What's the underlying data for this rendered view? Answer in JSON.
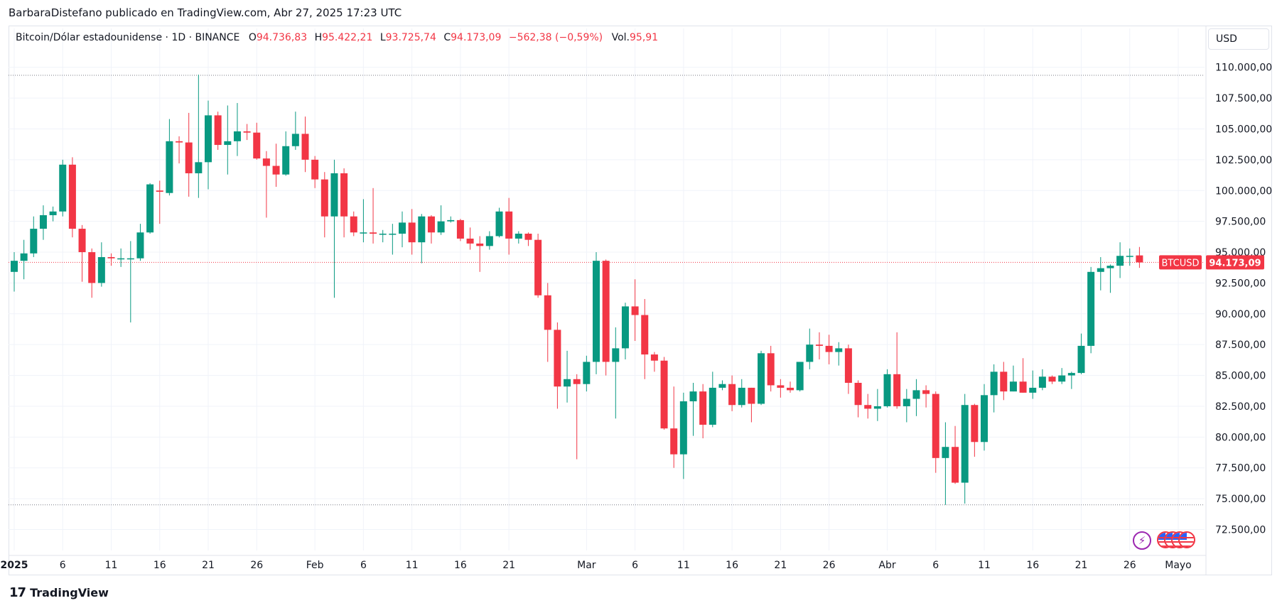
{
  "credit": "BarbaraDistefano publicado en TradingView.com, Abr 27, 2025 17:23 UTC",
  "legend": {
    "symbol": "Bitcoin/Dólar estadounidense · 1D · BINANCE",
    "o_label": "O",
    "o_value": "94.736,83",
    "h_label": "H",
    "h_value": "95.422,21",
    "l_label": "L",
    "l_value": "93.725,74",
    "c_label": "C",
    "c_value": "94.173,09",
    "change": "−562,38 (−0,59%)",
    "vol_label": "Vol.",
    "vol_value": "95,91"
  },
  "currency": "USD",
  "price_tag": {
    "symbol": "BTCUSD",
    "value": "94.173,09"
  },
  "brand": "TradingView",
  "icons": [
    "lightning-icon",
    "us-flag-icon",
    "us-flag-icon",
    "us-flag-icon",
    "us-flag-icon"
  ],
  "colors": {
    "up": "#089981",
    "down": "#f23645",
    "grid": "#f0f3fa",
    "axis_text": "#131722"
  },
  "chart_data": {
    "type": "candlestick",
    "interval": "1D",
    "ylim": [
      70800,
      112000
    ],
    "yticks": [
      72500,
      75000,
      77500,
      80000,
      82500,
      85000,
      87500,
      90000,
      92500,
      95000,
      97500,
      100000,
      102500,
      105000,
      107500,
      110000
    ],
    "ytick_labels": [
      "72.500,00",
      "75.000,00",
      "77.500,00",
      "80.000,00",
      "82.500,00",
      "85.000,00",
      "87.500,00",
      "90.000,00",
      "92.500,00",
      "95.000,00",
      "97.500,00",
      "100.000,00",
      "102.500,00",
      "105.000,00",
      "107.500,00",
      "110.000,00"
    ],
    "xtick_labels": [
      {
        "day": 0,
        "label": "2025",
        "bold": true
      },
      {
        "day": 5,
        "label": "6"
      },
      {
        "day": 10,
        "label": "11"
      },
      {
        "day": 15,
        "label": "16"
      },
      {
        "day": 20,
        "label": "21"
      },
      {
        "day": 25,
        "label": "26"
      },
      {
        "day": 31,
        "label": "Feb"
      },
      {
        "day": 36,
        "label": "6"
      },
      {
        "day": 41,
        "label": "11"
      },
      {
        "day": 46,
        "label": "16"
      },
      {
        "day": 51,
        "label": "21"
      },
      {
        "day": 59,
        "label": "Mar"
      },
      {
        "day": 64,
        "label": "6"
      },
      {
        "day": 69,
        "label": "11"
      },
      {
        "day": 74,
        "label": "16"
      },
      {
        "day": 79,
        "label": "21"
      },
      {
        "day": 84,
        "label": "26"
      },
      {
        "day": 90,
        "label": "Abr"
      },
      {
        "day": 95,
        "label": "6"
      },
      {
        "day": 100,
        "label": "11"
      },
      {
        "day": 105,
        "label": "16"
      },
      {
        "day": 110,
        "label": "21"
      },
      {
        "day": 115,
        "label": "26"
      },
      {
        "day": 120,
        "label": "Mayo"
      }
    ],
    "reference_lines": [
      109350,
      74500
    ],
    "last_price": 94173.09,
    "candles": [
      {
        "date": "2025-01-01",
        "o": 93400,
        "h": 95000,
        "l": 91800,
        "c": 94300
      },
      {
        "date": "2025-01-02",
        "o": 94300,
        "h": 96000,
        "l": 92800,
        "c": 94900
      },
      {
        "date": "2025-01-03",
        "o": 94900,
        "h": 97900,
        "l": 94600,
        "c": 96900
      },
      {
        "date": "2025-01-04",
        "o": 96900,
        "h": 98800,
        "l": 96000,
        "c": 98000
      },
      {
        "date": "2025-01-05",
        "o": 98000,
        "h": 98700,
        "l": 97500,
        "c": 98300
      },
      {
        "date": "2025-01-06",
        "o": 98300,
        "h": 102500,
        "l": 97900,
        "c": 102100
      },
      {
        "date": "2025-01-07",
        "o": 102100,
        "h": 102700,
        "l": 96200,
        "c": 96900
      },
      {
        "date": "2025-01-08",
        "o": 96900,
        "h": 97200,
        "l": 92600,
        "c": 95000
      },
      {
        "date": "2025-01-09",
        "o": 95000,
        "h": 95300,
        "l": 91300,
        "c": 92500
      },
      {
        "date": "2025-01-10",
        "o": 92500,
        "h": 95800,
        "l": 92200,
        "c": 94600
      },
      {
        "date": "2025-01-11",
        "o": 94600,
        "h": 94900,
        "l": 93900,
        "c": 94500
      },
      {
        "date": "2025-01-12",
        "o": 94500,
        "h": 95300,
        "l": 93800,
        "c": 94500
      },
      {
        "date": "2025-01-13",
        "o": 94500,
        "h": 95900,
        "l": 89300,
        "c": 94500
      },
      {
        "date": "2025-01-14",
        "o": 94500,
        "h": 97300,
        "l": 94300,
        "c": 96600
      },
      {
        "date": "2025-01-15",
        "o": 96600,
        "h": 100600,
        "l": 96500,
        "c": 100500
      },
      {
        "date": "2025-01-16",
        "o": 100000,
        "h": 100800,
        "l": 97300,
        "c": 99900
      },
      {
        "date": "2025-01-17",
        "o": 99800,
        "h": 105800,
        "l": 99600,
        "c": 104000
      },
      {
        "date": "2025-01-18",
        "o": 104000,
        "h": 104400,
        "l": 102200,
        "c": 103900
      },
      {
        "date": "2025-01-19",
        "o": 103900,
        "h": 106300,
        "l": 99500,
        "c": 101400
      },
      {
        "date": "2025-01-20",
        "o": 101400,
        "h": 109400,
        "l": 99400,
        "c": 102300
      },
      {
        "date": "2025-01-21",
        "o": 102300,
        "h": 107300,
        "l": 100100,
        "c": 106100
      },
      {
        "date": "2025-01-22",
        "o": 106100,
        "h": 106400,
        "l": 103300,
        "c": 103700
      },
      {
        "date": "2025-01-23",
        "o": 103700,
        "h": 106900,
        "l": 101300,
        "c": 104000
      },
      {
        "date": "2025-01-24",
        "o": 104000,
        "h": 107100,
        "l": 102800,
        "c": 104800
      },
      {
        "date": "2025-01-25",
        "o": 104800,
        "h": 105400,
        "l": 104100,
        "c": 104700
      },
      {
        "date": "2025-01-26",
        "o": 104700,
        "h": 105500,
        "l": 102500,
        "c": 102600
      },
      {
        "date": "2025-01-27",
        "o": 102600,
        "h": 103200,
        "l": 97800,
        "c": 102000
      },
      {
        "date": "2025-01-28",
        "o": 102000,
        "h": 103800,
        "l": 100300,
        "c": 101300
      },
      {
        "date": "2025-01-29",
        "o": 101300,
        "h": 104800,
        "l": 101200,
        "c": 103600
      },
      {
        "date": "2025-01-30",
        "o": 103600,
        "h": 106400,
        "l": 103300,
        "c": 104600
      },
      {
        "date": "2025-01-31",
        "o": 104600,
        "h": 106000,
        "l": 101500,
        "c": 102500
      },
      {
        "date": "2025-02-01",
        "o": 102500,
        "h": 102800,
        "l": 100200,
        "c": 100900
      },
      {
        "date": "2025-02-02",
        "o": 100900,
        "h": 101500,
        "l": 96200,
        "c": 97900
      },
      {
        "date": "2025-02-03",
        "o": 97900,
        "h": 102500,
        "l": 91300,
        "c": 101400
      },
      {
        "date": "2025-02-04",
        "o": 101400,
        "h": 101800,
        "l": 96200,
        "c": 97900
      },
      {
        "date": "2025-02-05",
        "o": 97900,
        "h": 98300,
        "l": 96300,
        "c": 96600
      },
      {
        "date": "2025-02-06",
        "o": 96600,
        "h": 99300,
        "l": 95800,
        "c": 96600
      },
      {
        "date": "2025-02-07",
        "o": 96600,
        "h": 100200,
        "l": 95700,
        "c": 96500
      },
      {
        "date": "2025-02-08",
        "o": 96500,
        "h": 96800,
        "l": 95800,
        "c": 96500
      },
      {
        "date": "2025-02-09",
        "o": 96500,
        "h": 97300,
        "l": 94800,
        "c": 96500
      },
      {
        "date": "2025-02-10",
        "o": 96500,
        "h": 98300,
        "l": 95400,
        "c": 97400
      },
      {
        "date": "2025-02-11",
        "o": 97400,
        "h": 98500,
        "l": 94800,
        "c": 95800
      },
      {
        "date": "2025-02-12",
        "o": 95800,
        "h": 98100,
        "l": 94100,
        "c": 97900
      },
      {
        "date": "2025-02-13",
        "o": 97900,
        "h": 98000,
        "l": 95700,
        "c": 96600
      },
      {
        "date": "2025-02-14",
        "o": 96600,
        "h": 98800,
        "l": 96400,
        "c": 97500
      },
      {
        "date": "2025-02-15",
        "o": 97500,
        "h": 97900,
        "l": 97400,
        "c": 97600
      },
      {
        "date": "2025-02-16",
        "o": 97600,
        "h": 97700,
        "l": 95900,
        "c": 96100
      },
      {
        "date": "2025-02-17",
        "o": 96100,
        "h": 97000,
        "l": 95200,
        "c": 95700
      },
      {
        "date": "2025-02-18",
        "o": 95700,
        "h": 96300,
        "l": 93400,
        "c": 95500
      },
      {
        "date": "2025-02-19",
        "o": 95500,
        "h": 96700,
        "l": 95200,
        "c": 96300
      },
      {
        "date": "2025-02-20",
        "o": 96300,
        "h": 98600,
        "l": 96200,
        "c": 98300
      },
      {
        "date": "2025-02-21",
        "o": 98300,
        "h": 99400,
        "l": 94800,
        "c": 96100
      },
      {
        "date": "2025-02-22",
        "o": 96100,
        "h": 96700,
        "l": 95700,
        "c": 96500
      },
      {
        "date": "2025-02-23",
        "o": 96500,
        "h": 96600,
        "l": 95500,
        "c": 96000
      },
      {
        "date": "2025-02-24",
        "o": 96000,
        "h": 96500,
        "l": 91300,
        "c": 91500
      },
      {
        "date": "2025-02-25",
        "o": 91500,
        "h": 92500,
        "l": 86100,
        "c": 88700
      },
      {
        "date": "2025-02-26",
        "o": 88700,
        "h": 89300,
        "l": 82300,
        "c": 84100
      },
      {
        "date": "2025-02-27",
        "o": 84100,
        "h": 87000,
        "l": 82800,
        "c": 84700
      },
      {
        "date": "2025-02-28",
        "o": 84700,
        "h": 85100,
        "l": 78200,
        "c": 84300
      },
      {
        "date": "2025-03-01",
        "o": 84300,
        "h": 86600,
        "l": 83700,
        "c": 86100
      },
      {
        "date": "2025-03-02",
        "o": 86100,
        "h": 95000,
        "l": 85100,
        "c": 94300
      },
      {
        "date": "2025-03-03",
        "o": 94300,
        "h": 94400,
        "l": 85000,
        "c": 86100
      },
      {
        "date": "2025-03-04",
        "o": 86100,
        "h": 88900,
        "l": 81500,
        "c": 87200
      },
      {
        "date": "2025-03-05",
        "o": 87200,
        "h": 90900,
        "l": 86300,
        "c": 90600
      },
      {
        "date": "2025-03-06",
        "o": 90600,
        "h": 92800,
        "l": 87800,
        "c": 89900
      },
      {
        "date": "2025-03-07",
        "o": 89900,
        "h": 91200,
        "l": 84700,
        "c": 86700
      },
      {
        "date": "2025-03-08",
        "o": 86700,
        "h": 86900,
        "l": 85300,
        "c": 86200
      },
      {
        "date": "2025-03-09",
        "o": 86200,
        "h": 86500,
        "l": 80600,
        "c": 80700
      },
      {
        "date": "2025-03-10",
        "o": 80700,
        "h": 84100,
        "l": 77500,
        "c": 78600
      },
      {
        "date": "2025-03-11",
        "o": 78600,
        "h": 83600,
        "l": 76600,
        "c": 82900
      },
      {
        "date": "2025-03-12",
        "o": 82900,
        "h": 84400,
        "l": 80100,
        "c": 83700
      },
      {
        "date": "2025-03-13",
        "o": 83700,
        "h": 84300,
        "l": 79900,
        "c": 81000
      },
      {
        "date": "2025-03-14",
        "o": 81000,
        "h": 85300,
        "l": 80800,
        "c": 84000
      },
      {
        "date": "2025-03-15",
        "o": 84000,
        "h": 84600,
        "l": 83800,
        "c": 84300
      },
      {
        "date": "2025-03-16",
        "o": 84300,
        "h": 85000,
        "l": 82100,
        "c": 82600
      },
      {
        "date": "2025-03-17",
        "o": 82600,
        "h": 84700,
        "l": 82400,
        "c": 84000
      },
      {
        "date": "2025-03-18",
        "o": 84000,
        "h": 84000,
        "l": 81200,
        "c": 82700
      },
      {
        "date": "2025-03-19",
        "o": 82700,
        "h": 87000,
        "l": 82600,
        "c": 86800
      },
      {
        "date": "2025-03-20",
        "o": 86800,
        "h": 87400,
        "l": 83700,
        "c": 84200
      },
      {
        "date": "2025-03-21",
        "o": 84200,
        "h": 84700,
        "l": 83200,
        "c": 84000
      },
      {
        "date": "2025-03-22",
        "o": 84000,
        "h": 84500,
        "l": 83600,
        "c": 83800
      },
      {
        "date": "2025-03-23",
        "o": 83800,
        "h": 86100,
        "l": 83700,
        "c": 86100
      },
      {
        "date": "2025-03-24",
        "o": 86100,
        "h": 88800,
        "l": 85500,
        "c": 87500
      },
      {
        "date": "2025-03-25",
        "o": 87500,
        "h": 88500,
        "l": 86300,
        "c": 87400
      },
      {
        "date": "2025-03-26",
        "o": 87400,
        "h": 88300,
        "l": 85900,
        "c": 86900
      },
      {
        "date": "2025-03-27",
        "o": 86900,
        "h": 87700,
        "l": 85800,
        "c": 87200
      },
      {
        "date": "2025-03-28",
        "o": 87200,
        "h": 87500,
        "l": 83500,
        "c": 84400
      },
      {
        "date": "2025-03-29",
        "o": 84400,
        "h": 84600,
        "l": 81600,
        "c": 82600
      },
      {
        "date": "2025-03-30",
        "o": 82600,
        "h": 83500,
        "l": 81500,
        "c": 82300
      },
      {
        "date": "2025-03-31",
        "o": 82300,
        "h": 83900,
        "l": 81300,
        "c": 82500
      },
      {
        "date": "2025-04-01",
        "o": 82500,
        "h": 85500,
        "l": 82400,
        "c": 85100
      },
      {
        "date": "2025-04-02",
        "o": 85100,
        "h": 88500,
        "l": 82300,
        "c": 82500
      },
      {
        "date": "2025-04-03",
        "o": 82500,
        "h": 83900,
        "l": 81200,
        "c": 83100
      },
      {
        "date": "2025-04-04",
        "o": 83100,
        "h": 84700,
        "l": 81700,
        "c": 83800
      },
      {
        "date": "2025-04-05",
        "o": 83800,
        "h": 84200,
        "l": 82400,
        "c": 83500
      },
      {
        "date": "2025-04-06",
        "o": 83500,
        "h": 83700,
        "l": 77100,
        "c": 78300
      },
      {
        "date": "2025-04-07",
        "o": 78300,
        "h": 81200,
        "l": 74500,
        "c": 79200
      },
      {
        "date": "2025-04-08",
        "o": 79200,
        "h": 80900,
        "l": 76200,
        "c": 76300
      },
      {
        "date": "2025-04-09",
        "o": 76300,
        "h": 83500,
        "l": 74600,
        "c": 82600
      },
      {
        "date": "2025-04-10",
        "o": 82600,
        "h": 82700,
        "l": 78400,
        "c": 79600
      },
      {
        "date": "2025-04-11",
        "o": 79600,
        "h": 84300,
        "l": 78900,
        "c": 83400
      },
      {
        "date": "2025-04-12",
        "o": 83400,
        "h": 85900,
        "l": 82000,
        "c": 85300
      },
      {
        "date": "2025-04-13",
        "o": 85300,
        "h": 86100,
        "l": 83000,
        "c": 83700
      },
      {
        "date": "2025-04-14",
        "o": 83700,
        "h": 85800,
        "l": 83700,
        "c": 84500
      },
      {
        "date": "2025-04-15",
        "o": 84500,
        "h": 86400,
        "l": 83600,
        "c": 83600
      },
      {
        "date": "2025-04-16",
        "o": 83600,
        "h": 85400,
        "l": 83100,
        "c": 84000
      },
      {
        "date": "2025-04-17",
        "o": 84000,
        "h": 85500,
        "l": 83800,
        "c": 84900
      },
      {
        "date": "2025-04-18",
        "o": 84900,
        "h": 85000,
        "l": 84300,
        "c": 84500
      },
      {
        "date": "2025-04-19",
        "o": 84500,
        "h": 85600,
        "l": 84300,
        "c": 85000
      },
      {
        "date": "2025-04-20",
        "o": 85000,
        "h": 85300,
        "l": 83900,
        "c": 85200
      },
      {
        "date": "2025-04-21",
        "o": 85200,
        "h": 88400,
        "l": 85100,
        "c": 87400
      },
      {
        "date": "2025-04-22",
        "o": 87400,
        "h": 93800,
        "l": 86800,
        "c": 93400
      },
      {
        "date": "2025-04-23",
        "o": 93400,
        "h": 94600,
        "l": 91900,
        "c": 93700
      },
      {
        "date": "2025-04-24",
        "o": 93700,
        "h": 94000,
        "l": 91700,
        "c": 93900
      },
      {
        "date": "2025-04-25",
        "o": 93900,
        "h": 95800,
        "l": 92900,
        "c": 94700
      },
      {
        "date": "2025-04-26",
        "o": 94700,
        "h": 95300,
        "l": 93900,
        "c": 94700
      },
      {
        "date": "2025-04-27",
        "o": 94737,
        "h": 95422,
        "l": 93726,
        "c": 94173
      }
    ]
  }
}
